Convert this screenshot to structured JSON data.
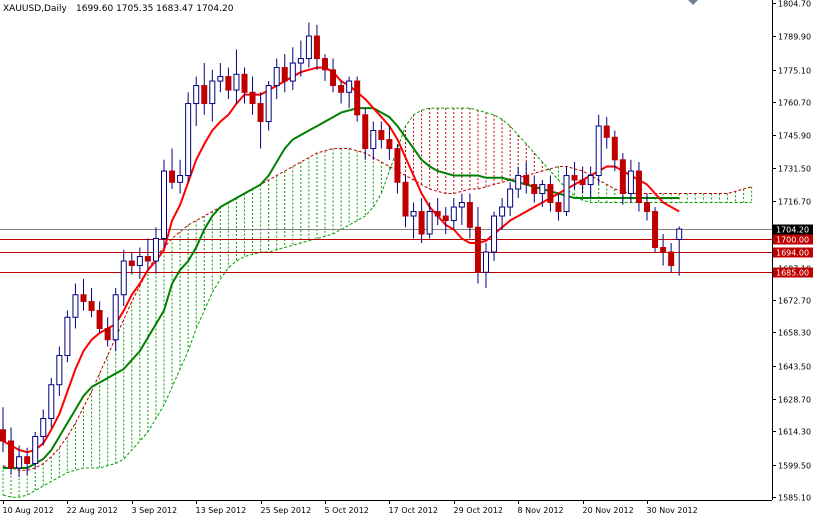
{
  "header": {
    "symbol": "XAUUSD,Daily",
    "ohlc": "1699.60 1705.35 1683.47 1704.20"
  },
  "chart_data": {
    "type": "candlestick",
    "symbol": "XAUUSD",
    "timeframe": "Daily",
    "ylim": [
      1585.1,
      1804.7
    ],
    "y_ticks": [
      {
        "v": 1804.7,
        "label": "1804.70"
      },
      {
        "v": 1789.9,
        "label": "1789.90"
      },
      {
        "v": 1775.1,
        "label": "1775.10"
      },
      {
        "v": 1760.7,
        "label": "1760.70"
      },
      {
        "v": 1745.9,
        "label": "1745.90"
      },
      {
        "v": 1731.5,
        "label": "1731.50"
      },
      {
        "v": 1716.7,
        "label": "1716.70"
      },
      {
        "v": 1687.1,
        "label": "1687.10"
      },
      {
        "v": 1672.7,
        "label": "1672.70"
      },
      {
        "v": 1658.3,
        "label": "1658.30"
      },
      {
        "v": 1643.5,
        "label": "1643.50"
      },
      {
        "v": 1628.7,
        "label": "1628.70"
      },
      {
        "v": 1614.3,
        "label": "1614.30"
      },
      {
        "v": 1599.5,
        "label": "1599.50"
      },
      {
        "v": 1585.1,
        "label": "1585.10"
      }
    ],
    "x_ticks": [
      {
        "i": 0,
        "label": "10 Aug 2012"
      },
      {
        "i": 8,
        "label": "22 Aug 2012"
      },
      {
        "i": 16,
        "label": "3 Sep 2012"
      },
      {
        "i": 24,
        "label": "13 Sep 2012"
      },
      {
        "i": 32,
        "label": "25 Sep 2012"
      },
      {
        "i": 40,
        "label": "5 Oct 2012"
      },
      {
        "i": 48,
        "label": "17 Oct 2012"
      },
      {
        "i": 56,
        "label": "29 Oct 2012"
      },
      {
        "i": 64,
        "label": "8 Nov 2012"
      },
      {
        "i": 72,
        "label": "20 Nov 2012"
      },
      {
        "i": 80,
        "label": "30 Nov 2012"
      }
    ],
    "levels": [
      {
        "price": 1704.2,
        "label": "1704.20",
        "kind": "current"
      },
      {
        "price": 1700.0,
        "label": "1700.00",
        "kind": "support"
      },
      {
        "price": 1694.0,
        "label": "1694.00",
        "kind": "support"
      },
      {
        "price": 1685.0,
        "label": "1685.00",
        "kind": "support"
      }
    ],
    "colors": {
      "bull_candle": "#ffffff",
      "bear_candle": "#c00000",
      "wick": "#000080",
      "tenkan": "#ff0000",
      "kijun": "#008000",
      "cloud_bull": "#00a000",
      "cloud_bear": "#c00000",
      "level": "#c00000",
      "current": "#000000"
    },
    "candles": [
      [
        1615,
        1625,
        1605,
        1610
      ],
      [
        1610,
        1616,
        1595,
        1598
      ],
      [
        1598,
        1608,
        1594,
        1603
      ],
      [
        1603,
        1607,
        1595,
        1600
      ],
      [
        1600,
        1614,
        1598,
        1612
      ],
      [
        1612,
        1624,
        1608,
        1620
      ],
      [
        1620,
        1638,
        1616,
        1635
      ],
      [
        1635,
        1652,
        1630,
        1648
      ],
      [
        1648,
        1668,
        1645,
        1665
      ],
      [
        1665,
        1680,
        1660,
        1675
      ],
      [
        1675,
        1682,
        1668,
        1672
      ],
      [
        1672,
        1678,
        1665,
        1668
      ],
      [
        1668,
        1672,
        1658,
        1660
      ],
      [
        1660,
        1665,
        1652,
        1655
      ],
      [
        1655,
        1678,
        1650,
        1675
      ],
      [
        1675,
        1695,
        1670,
        1690
      ],
      [
        1690,
        1694,
        1684,
        1688
      ],
      [
        1688,
        1696,
        1682,
        1692
      ],
      [
        1692,
        1700,
        1686,
        1690
      ],
      [
        1690,
        1705,
        1685,
        1700
      ],
      [
        1700,
        1735,
        1696,
        1730
      ],
      [
        1730,
        1740,
        1722,
        1725
      ],
      [
        1725,
        1735,
        1720,
        1728
      ],
      [
        1728,
        1765,
        1725,
        1760
      ],
      [
        1760,
        1772,
        1750,
        1768
      ],
      [
        1768,
        1778,
        1755,
        1760
      ],
      [
        1760,
        1775,
        1752,
        1770
      ],
      [
        1770,
        1778,
        1765,
        1772
      ],
      [
        1772,
        1776,
        1762,
        1766
      ],
      [
        1766,
        1784,
        1760,
        1773
      ],
      [
        1773,
        1776,
        1760,
        1765
      ],
      [
        1765,
        1772,
        1755,
        1760
      ],
      [
        1760,
        1765,
        1740,
        1752
      ],
      [
        1752,
        1770,
        1748,
        1768
      ],
      [
        1768,
        1780,
        1762,
        1776
      ],
      [
        1776,
        1782,
        1765,
        1770
      ],
      [
        1770,
        1785,
        1766,
        1778
      ],
      [
        1778,
        1788,
        1772,
        1780
      ],
      [
        1780,
        1796,
        1776,
        1790
      ],
      [
        1790,
        1795,
        1775,
        1780
      ],
      [
        1780,
        1782,
        1770,
        1775
      ],
      [
        1775,
        1780,
        1765,
        1768
      ],
      [
        1768,
        1770,
        1760,
        1765
      ],
      [
        1765,
        1772,
        1758,
        1770
      ],
      [
        1770,
        1772,
        1752,
        1755
      ],
      [
        1755,
        1758,
        1735,
        1740
      ],
      [
        1740,
        1752,
        1735,
        1748
      ],
      [
        1748,
        1752,
        1740,
        1744
      ],
      [
        1744,
        1750,
        1735,
        1740
      ],
      [
        1740,
        1742,
        1720,
        1725
      ],
      [
        1725,
        1728,
        1705,
        1710
      ],
      [
        1710,
        1716,
        1700,
        1712
      ],
      [
        1712,
        1718,
        1698,
        1702
      ],
      [
        1702,
        1716,
        1700,
        1712
      ],
      [
        1712,
        1718,
        1706,
        1710
      ],
      [
        1710,
        1714,
        1702,
        1708
      ],
      [
        1708,
        1718,
        1704,
        1714
      ],
      [
        1714,
        1720,
        1706,
        1716
      ],
      [
        1716,
        1720,
        1700,
        1705
      ],
      [
        1705,
        1714,
        1680,
        1685
      ],
      [
        1685,
        1698,
        1678,
        1694
      ],
      [
        1694,
        1712,
        1690,
        1710
      ],
      [
        1710,
        1718,
        1704,
        1714
      ],
      [
        1714,
        1725,
        1710,
        1722
      ],
      [
        1722,
        1732,
        1718,
        1728
      ],
      [
        1728,
        1734,
        1720,
        1724
      ],
      [
        1724,
        1728,
        1716,
        1720
      ],
      [
        1720,
        1726,
        1714,
        1724
      ],
      [
        1724,
        1728,
        1712,
        1716
      ],
      [
        1716,
        1720,
        1708,
        1712
      ],
      [
        1712,
        1732,
        1710,
        1728
      ],
      [
        1728,
        1734,
        1722,
        1726
      ],
      [
        1726,
        1732,
        1720,
        1724
      ],
      [
        1724,
        1732,
        1718,
        1728
      ],
      [
        1728,
        1755,
        1724,
        1750
      ],
      [
        1750,
        1754,
        1740,
        1745
      ],
      [
        1745,
        1748,
        1730,
        1735
      ],
      [
        1735,
        1738,
        1715,
        1720
      ],
      [
        1720,
        1735,
        1716,
        1730
      ],
      [
        1730,
        1734,
        1712,
        1716
      ],
      [
        1716,
        1720,
        1708,
        1712
      ],
      [
        1712,
        1714,
        1694,
        1696
      ],
      [
        1696,
        1702,
        1688,
        1694
      ],
      [
        1694,
        1698,
        1685,
        1688
      ],
      [
        1699.6,
        1705.35,
        1683.47,
        1704.2
      ]
    ],
    "tenkan": [
      1610,
      1608,
      1606,
      1605,
      1606,
      1609,
      1615,
      1622,
      1632,
      1642,
      1650,
      1655,
      1658,
      1660,
      1662,
      1668,
      1675,
      1680,
      1686,
      1690,
      1695,
      1708,
      1715,
      1725,
      1735,
      1742,
      1748,
      1752,
      1755,
      1760,
      1764,
      1764,
      1764,
      1766,
      1768,
      1770,
      1772,
      1774,
      1775,
      1776,
      1776,
      1774,
      1770,
      1768,
      1765,
      1762,
      1758,
      1754,
      1750,
      1744,
      1736,
      1728,
      1720,
      1714,
      1710,
      1706,
      1704,
      1700,
      1698,
      1698,
      1699,
      1702,
      1705,
      1708,
      1710,
      1712,
      1714,
      1716,
      1718,
      1720,
      1722,
      1724,
      1726,
      1728,
      1730,
      1732,
      1732,
      1730,
      1728,
      1726,
      1724,
      1720,
      1716,
      1714,
      1712
    ],
    "kijun": [
      1598,
      1598,
      1598,
      1598,
      1600,
      1602,
      1606,
      1612,
      1618,
      1624,
      1630,
      1634,
      1636,
      1638,
      1640,
      1642,
      1646,
      1650,
      1656,
      1662,
      1668,
      1680,
      1686,
      1690,
      1696,
      1704,
      1710,
      1714,
      1716,
      1718,
      1720,
      1722,
      1724,
      1728,
      1734,
      1740,
      1744,
      1746,
      1748,
      1750,
      1752,
      1754,
      1756,
      1757,
      1758,
      1758,
      1758,
      1756,
      1754,
      1750,
      1745,
      1740,
      1735,
      1732,
      1730,
      1729,
      1728,
      1728,
      1728,
      1728,
      1727,
      1727,
      1727,
      1726,
      1725,
      1724,
      1723,
      1722,
      1721,
      1720,
      1719,
      1718,
      1718,
      1718,
      1718,
      1718,
      1718,
      1718,
      1718,
      1718,
      1718,
      1718,
      1718,
      1718,
      1718
    ],
    "senkou_a": [
      1599,
      1598,
      1597,
      1597,
      1598,
      1600,
      1603,
      1607,
      1612,
      1618,
      1625,
      1632,
      1640,
      1648,
      1656,
      1664,
      1672,
      1679,
      1686,
      1692,
      1696,
      1700,
      1703,
      1706,
      1708,
      1710,
      1712,
      1714,
      1716,
      1718,
      1720,
      1722,
      1724,
      1726,
      1728,
      1730,
      1732,
      1734,
      1736,
      1738,
      1739,
      1740,
      1740,
      1740,
      1739,
      1738,
      1736,
      1734,
      1732,
      1730,
      1728,
      1726,
      1724,
      1722,
      1721,
      1720,
      1720,
      1721,
      1722,
      1722,
      1723,
      1724,
      1725,
      1726,
      1727,
      1728,
      1729,
      1730,
      1731,
      1732,
      1732,
      1731,
      1730,
      1728,
      1726,
      1724,
      1722,
      1721,
      1720,
      1720,
      1720,
      1720,
      1720,
      1720,
      1720,
      1720,
      1720,
      1720,
      1720,
      1720,
      1720,
      1721,
      1722,
      1723
    ],
    "senkou_b": [
      1586,
      1585,
      1585,
      1586,
      1588,
      1590,
      1592,
      1594,
      1596,
      1597,
      1598,
      1598,
      1598,
      1599,
      1600,
      1602,
      1606,
      1610,
      1614,
      1620,
      1626,
      1634,
      1642,
      1650,
      1660,
      1668,
      1676,
      1682,
      1687,
      1690,
      1692,
      1693,
      1694,
      1694,
      1695,
      1696,
      1697,
      1698,
      1699,
      1700,
      1701,
      1702,
      1704,
      1706,
      1708,
      1710,
      1714,
      1720,
      1730,
      1740,
      1750,
      1755,
      1757,
      1758,
      1758,
      1758,
      1758,
      1758,
      1758,
      1757,
      1756,
      1755,
      1753,
      1750,
      1746,
      1742,
      1738,
      1734,
      1730,
      1726,
      1722,
      1719,
      1717,
      1716,
      1716,
      1716,
      1716,
      1716,
      1716,
      1716,
      1716,
      1716,
      1716,
      1716,
      1716,
      1716,
      1716,
      1716,
      1716,
      1716,
      1716,
      1716,
      1716,
      1716
    ]
  }
}
